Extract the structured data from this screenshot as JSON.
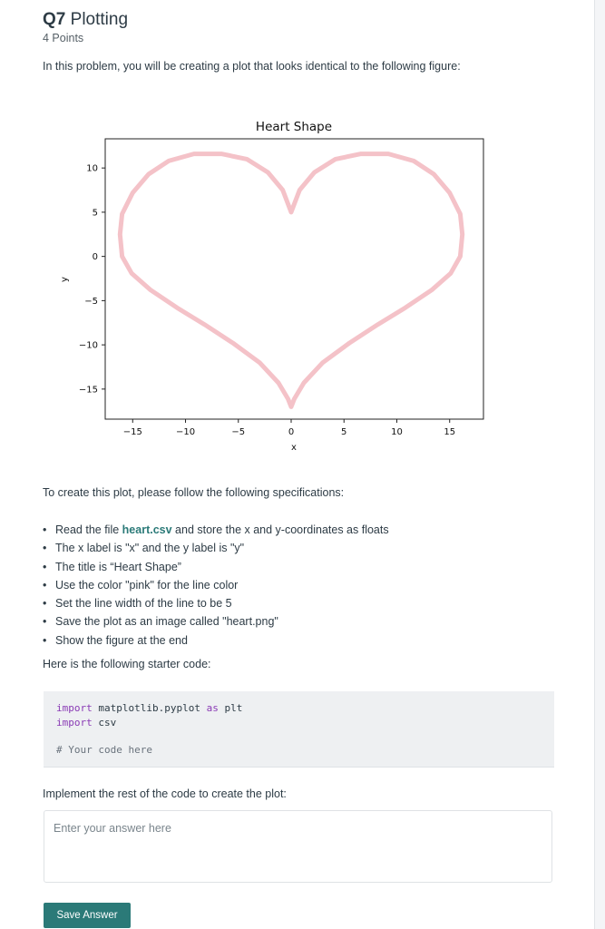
{
  "question": {
    "number": "Q7",
    "title": "Plotting",
    "points": "4 Points",
    "intro": "In this problem, you will be creating a plot that looks identical to the following figure:"
  },
  "chart_data": {
    "type": "line",
    "title": "Heart Shape",
    "xlabel": "x",
    "ylabel": "y",
    "xlim": [
      -17.6,
      18.2
    ],
    "ylim": [
      -18.4,
      13.3
    ],
    "xticks": [
      -15,
      -10,
      -5,
      0,
      5,
      10,
      15
    ],
    "xtick_labels": [
      "−15",
      "−10",
      "−5",
      "0",
      "5",
      "10",
      "15"
    ],
    "yticks": [
      10,
      5,
      0,
      -5,
      -10,
      -15
    ],
    "ytick_labels": [
      "10",
      "5",
      "0",
      "−5",
      "−10",
      "−15"
    ],
    "grid": false,
    "legend": null,
    "line_color": "#f4c2c8",
    "series": [
      {
        "x": [
          0,
          0.8,
          2.2,
          4.2,
          6.6,
          9.2,
          11.6,
          13.5,
          15.0,
          16.0,
          16.2,
          16.0,
          15.1,
          13.3,
          10.8,
          8.2,
          5.5,
          3.0,
          1.2,
          0.3,
          0,
          -0.3,
          -1.2,
          -3.0,
          -5.5,
          -8.2,
          -10.8,
          -13.3,
          -15.1,
          -16.0,
          -16.2,
          -16.0,
          -15.0,
          -13.5,
          -11.6,
          -9.2,
          -6.6,
          -4.2,
          -2.2,
          -0.8,
          0
        ],
        "y": [
          5.0,
          7.5,
          9.5,
          11.0,
          11.6,
          11.6,
          10.8,
          9.3,
          7.2,
          4.8,
          2.5,
          0.0,
          -1.9,
          -3.8,
          -5.8,
          -7.7,
          -9.8,
          -12.0,
          -14.3,
          -16.1,
          -17.0,
          -16.1,
          -14.3,
          -12.0,
          -9.8,
          -7.7,
          -5.8,
          -3.8,
          -1.9,
          0.0,
          2.5,
          4.8,
          7.2,
          9.3,
          10.8,
          11.6,
          11.6,
          11.0,
          9.5,
          7.5,
          5.0
        ]
      }
    ]
  },
  "spec_intro": "To create this plot, please follow the following specifications:",
  "specs": {
    "item0_prefix": "Read the file ",
    "item0_link": "heart.csv",
    "item0_suffix": " and store the x and y-coordinates as floats",
    "item1": "The x label is \"x\" and the y label is \"y\"",
    "item2": "The title is “Heart Shape”",
    "item3": "Use the color \"pink\" for the line color",
    "item4": "Set the line width of the line to be 5",
    "item5": "Save the plot as an image called \"heart.png\"",
    "item6": "Show the figure at the end"
  },
  "starter_intro": "Here is the following starter code:",
  "code": {
    "line1_kw1": "import",
    "line1_mod": " matplotlib.pyplot ",
    "line1_kw2": "as",
    "line1_alias": " plt",
    "line2_kw": "import",
    "line2_mod": " csv",
    "comment": "# Your code here"
  },
  "implement_label": "Implement the rest of the code to create the plot:",
  "answer": {
    "value": "",
    "placeholder": "Enter your answer here"
  },
  "save_label": "Save Answer"
}
